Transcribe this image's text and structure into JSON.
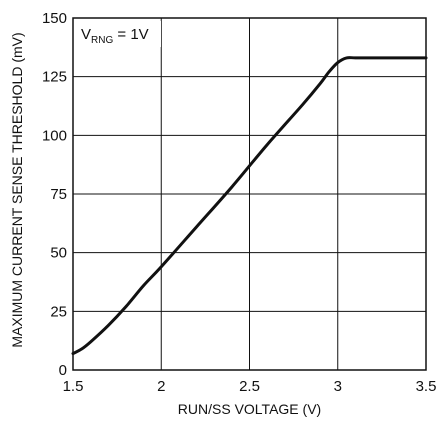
{
  "chart_data": {
    "type": "line",
    "title": "",
    "xlabel": "RUN/SS VOLTAGE (V)",
    "ylabel": "MAXIMUM CURRENT SENSE THRESHOLD (mV)",
    "xlim": [
      1.5,
      3.5
    ],
    "ylim": [
      0,
      150
    ],
    "x_ticks": [
      1.5,
      2,
      2.5,
      3,
      3.5
    ],
    "x_tick_labels": [
      "1.5",
      "2",
      "2.5",
      "3",
      "3.5"
    ],
    "y_ticks": [
      0,
      25,
      50,
      75,
      100,
      125,
      150
    ],
    "y_tick_labels": [
      "0",
      "25",
      "50",
      "75",
      "100",
      "125",
      "150"
    ],
    "grid": true,
    "annotation": {
      "prefix": "V",
      "subscript": "RNG",
      "suffix": " = 1V"
    },
    "series": [
      {
        "x": [
          1.5,
          1.55,
          1.6,
          1.7,
          1.8,
          1.9,
          2.0,
          2.2,
          2.4,
          2.6,
          2.8,
          2.9,
          2.95,
          3.0,
          3.05,
          3.1,
          3.2,
          3.3,
          3.4,
          3.5
        ],
        "y": [
          7,
          9,
          12,
          19,
          27,
          36,
          44,
          61,
          78,
          96,
          113,
          122,
          127,
          131,
          133,
          133,
          133,
          133,
          133,
          133
        ]
      }
    ]
  }
}
